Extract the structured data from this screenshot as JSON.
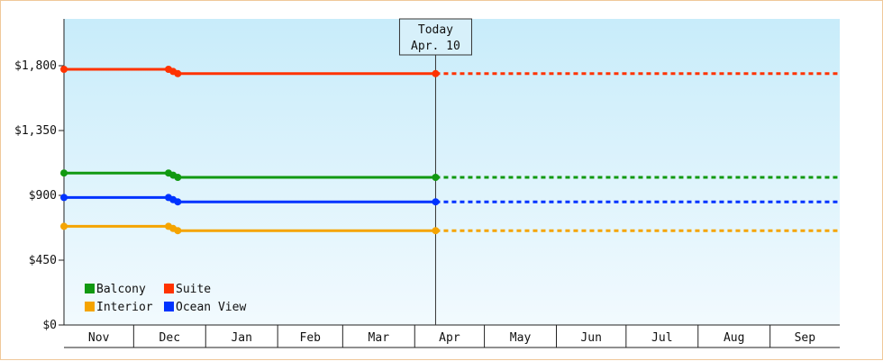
{
  "chart_data": {
    "type": "line",
    "ylim": [
      0,
      2125
    ],
    "yticks": [
      0,
      450,
      900,
      1350,
      1800
    ],
    "ytick_labels": [
      "$0",
      "$450",
      "$900",
      "$1,350",
      "$1,800"
    ],
    "xlim": [
      "2020-11-01",
      "2021-09-30"
    ],
    "month_labels": [
      {
        "label": "Nov",
        "start": "2020-11-01",
        "end": "2020-11-30"
      },
      {
        "label": "Dec",
        "start": "2020-12-01",
        "end": "2020-12-31"
      },
      {
        "label": "Jan",
        "start": "2021-01-01",
        "end": "2021-01-31"
      },
      {
        "label": "Feb",
        "start": "2021-02-01",
        "end": "2021-02-28"
      },
      {
        "label": "Mar",
        "start": "2021-03-01",
        "end": "2021-03-31"
      },
      {
        "label": "Apr",
        "start": "2021-04-01",
        "end": "2021-04-30"
      },
      {
        "label": "May",
        "start": "2021-05-01",
        "end": "2021-05-31"
      },
      {
        "label": "Jun",
        "start": "2021-06-01",
        "end": "2021-06-30"
      },
      {
        "label": "Jul",
        "start": "2021-07-01",
        "end": "2021-07-31"
      },
      {
        "label": "Aug",
        "start": "2021-08-01",
        "end": "2021-08-31"
      },
      {
        "label": "Sep",
        "start": "2021-09-01",
        "end": "2021-09-30"
      }
    ],
    "today": {
      "title": "Today",
      "label": "Apr. 10",
      "date": "2021-04-10"
    },
    "projection_end": "2021-09-30",
    "grid": false,
    "legend": "bottom-left",
    "series": [
      {
        "name": "Balcony",
        "color": "#119911",
        "points": [
          {
            "date": "2020-11-01",
            "value": 1055
          },
          {
            "date": "2020-12-16",
            "value": 1055
          },
          {
            "date": "2020-12-18",
            "value": 1040
          },
          {
            "date": "2020-12-20",
            "value": 1025
          },
          {
            "date": "2021-04-10",
            "value": 1025
          }
        ]
      },
      {
        "name": "Suite",
        "color": "#ff3300",
        "points": [
          {
            "date": "2020-11-01",
            "value": 1775
          },
          {
            "date": "2020-12-16",
            "value": 1775
          },
          {
            "date": "2020-12-18",
            "value": 1760
          },
          {
            "date": "2020-12-20",
            "value": 1745
          },
          {
            "date": "2021-04-10",
            "value": 1745
          }
        ]
      },
      {
        "name": "Interior",
        "color": "#f5a400",
        "points": [
          {
            "date": "2020-11-01",
            "value": 685
          },
          {
            "date": "2020-12-16",
            "value": 685
          },
          {
            "date": "2020-12-18",
            "value": 670
          },
          {
            "date": "2020-12-20",
            "value": 655
          },
          {
            "date": "2021-04-10",
            "value": 655
          }
        ]
      },
      {
        "name": "Ocean View",
        "color": "#0033ff",
        "points": [
          {
            "date": "2020-11-01",
            "value": 885
          },
          {
            "date": "2020-12-16",
            "value": 885
          },
          {
            "date": "2020-12-18",
            "value": 870
          },
          {
            "date": "2020-12-20",
            "value": 855
          },
          {
            "date": "2021-04-10",
            "value": 855
          }
        ]
      }
    ]
  }
}
